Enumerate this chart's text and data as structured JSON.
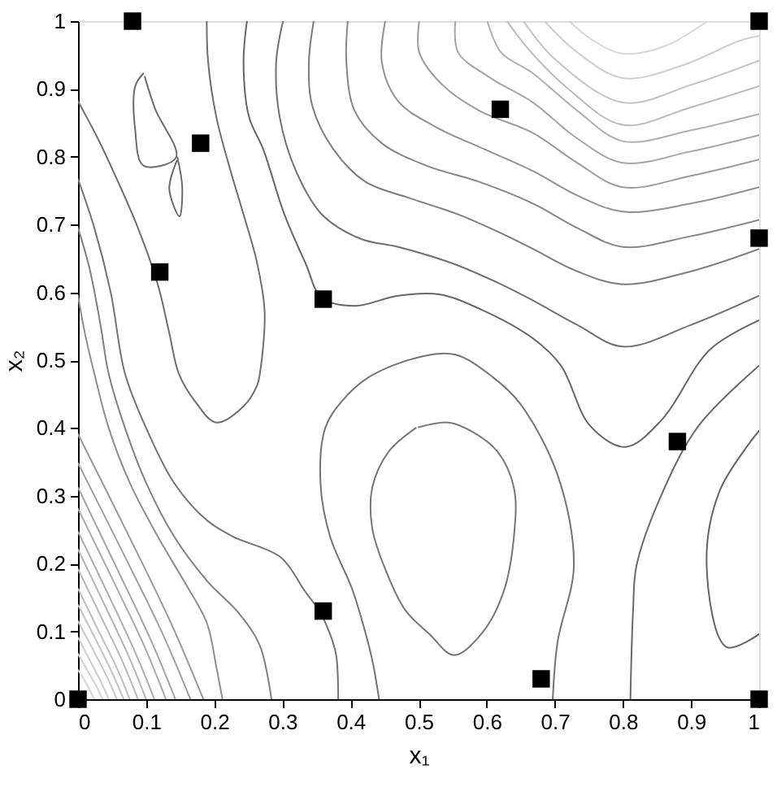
{
  "chart_data": {
    "type": "scatter",
    "xlabel": "x₁",
    "ylabel": "x₂",
    "xlim": [
      0,
      1
    ],
    "ylim": [
      0,
      1
    ],
    "xticks": [
      0,
      0.1,
      0.2,
      0.3,
      0.4,
      0.5,
      0.6,
      0.7,
      0.8,
      0.9,
      1
    ],
    "yticks": [
      0,
      0.1,
      0.2,
      0.3,
      0.4,
      0.5,
      0.6,
      0.7,
      0.8,
      0.9,
      1
    ],
    "grid": false,
    "series": [
      {
        "type": "line",
        "color": "#6e6e6e",
        "x": [
          0,
          0.029,
          0.057,
          0.088,
          0.117,
          0.134,
          0.148,
          0.172,
          0.203,
          0.243,
          0.263,
          0.267,
          0.274,
          0.263,
          0.243,
          0.224,
          0.203,
          0.191,
          0.189
        ],
        "values": [
          0.882,
          0.827,
          0.767,
          0.695,
          0.612,
          0.54,
          0.48,
          0.439,
          0.408,
          0.432,
          0.463,
          0.48,
          0.571,
          0.643,
          0.715,
          0.779,
          0.859,
          0.94,
          1.0
        ]
      },
      {
        "type": "line",
        "color": "#6c6c6c",
        "x": [
          0.096,
          0.084,
          0.084,
          0.096,
          0.144,
          0.113,
          0.098
        ],
        "values": [
          0.923,
          0.904,
          0.839,
          0.787,
          0.799,
          0.871,
          0.918
        ]
      },
      {
        "type": "line",
        "color": "#6a6a6a",
        "x": [
          0.146,
          0.153,
          0.149,
          0.134,
          0.145
        ],
        "values": [
          0.799,
          0.755,
          0.712,
          0.753,
          0.794
        ]
      },
      {
        "type": "line",
        "color": "#727272",
        "x": [
          0,
          0.024,
          0.048,
          0.069,
          0.1,
          0.141,
          0.189,
          0.227,
          0.298,
          0.332,
          0.356,
          0.37,
          0.379,
          0.382
        ],
        "values": [
          0.767,
          0.695,
          0.6,
          0.48,
          0.4,
          0.319,
          0.264,
          0.24,
          0.209,
          0.161,
          0.127,
          0.096,
          0.065,
          0
        ]
      },
      {
        "type": "line",
        "color": "#808080",
        "x": [
          0,
          0.017,
          0.033,
          0.045,
          0.069,
          0.1,
          0.141,
          0.189,
          0.236,
          0.267,
          0.284
        ],
        "values": [
          0.695,
          0.635,
          0.552,
          0.48,
          0.4,
          0.319,
          0.24,
          0.175,
          0.127,
          0.079,
          0
        ]
      },
      {
        "type": "line",
        "color": "#8e8e8e",
        "x": [
          0,
          0.01,
          0.024,
          0.045,
          0.076,
          0.117,
          0.155,
          0.189,
          0.203,
          0.212
        ],
        "values": [
          0.595,
          0.54,
          0.48,
          0.4,
          0.319,
          0.24,
          0.175,
          0.113,
          0.048,
          0
        ]
      },
      {
        "type": "line",
        "color": "#666666",
        "x": [
          0.248,
          0.243,
          0.251,
          0.272,
          0.303,
          0.334,
          0.358,
          0.406,
          0.47,
          0.53,
          0.589,
          0.668,
          0.709,
          0.752,
          0.804,
          0.857,
          0.928,
          1.0
        ],
        "values": [
          1.0,
          0.94,
          0.859,
          0.811,
          0.715,
          0.643,
          0.592,
          0.58,
          0.595,
          0.597,
          0.576,
          0.532,
          0.492,
          0.403,
          0.372,
          0.412,
          0.516,
          0.559
        ]
      },
      {
        "type": "line",
        "color": "#707070",
        "x": [
          0.301,
          0.291,
          0.296,
          0.32,
          0.358,
          0.415,
          0.47,
          0.549,
          0.621,
          0.668,
          0.733,
          0.8,
          0.9,
          1.0
        ],
        "values": [
          1.0,
          0.94,
          0.859,
          0.779,
          0.715,
          0.679,
          0.667,
          0.643,
          0.612,
          0.588,
          0.552,
          0.52,
          0.552,
          0.595
        ]
      },
      {
        "type": "line",
        "color": "#7c7c7c",
        "x": [
          0.346,
          0.339,
          0.344,
          0.375,
          0.422,
          0.487,
          0.558,
          0.63,
          0.668,
          0.733,
          0.8,
          0.9,
          1.0
        ],
        "values": [
          1.0,
          0.94,
          0.875,
          0.811,
          0.763,
          0.739,
          0.715,
          0.683,
          0.664,
          0.631,
          0.612,
          0.631,
          0.664
        ]
      },
      {
        "type": "line",
        "color": "#868686",
        "x": [
          0.396,
          0.394,
          0.406,
          0.446,
          0.511,
          0.589,
          0.668,
          0.733,
          0.8,
          0.9,
          1.0
        ],
        "values": [
          1.0,
          0.94,
          0.868,
          0.82,
          0.787,
          0.763,
          0.731,
          0.695,
          0.667,
          0.683,
          0.707
        ]
      },
      {
        "type": "line",
        "color": "#919191",
        "x": [
          0.451,
          0.446,
          0.47,
          0.525,
          0.597,
          0.668,
          0.733,
          0.8,
          0.9,
          1.0
        ],
        "values": [
          1.0,
          0.94,
          0.882,
          0.844,
          0.811,
          0.779,
          0.743,
          0.719,
          0.731,
          0.755
        ]
      },
      {
        "type": "line",
        "color": "#9b9b9b",
        "x": [
          0.501,
          0.501,
          0.535,
          0.589,
          0.668,
          0.733,
          0.8,
          0.9,
          1.0
        ],
        "values": [
          1.0,
          0.954,
          0.906,
          0.868,
          0.835,
          0.791,
          0.755,
          0.772,
          0.796
        ]
      },
      {
        "type": "line",
        "color": "#a5a5a5",
        "x": [
          0.554,
          0.558,
          0.606,
          0.668,
          0.733,
          0.8,
          0.9,
          1.0
        ],
        "values": [
          1.0,
          0.954,
          0.916,
          0.88,
          0.827,
          0.791,
          0.808,
          0.832
        ]
      },
      {
        "type": "line",
        "color": "#afafaf",
        "x": [
          0.601,
          0.621,
          0.668,
          0.733,
          0.8,
          0.9,
          1.0
        ],
        "values": [
          1.0,
          0.954,
          0.923,
          0.868,
          0.823,
          0.839,
          0.863
        ]
      },
      {
        "type": "line",
        "color": "#b9b9b9",
        "x": [
          0.63,
          0.661,
          0.721,
          0.8,
          0.9,
          1.0
        ],
        "values": [
          1.0,
          0.959,
          0.899,
          0.847,
          0.873,
          0.904
        ]
      },
      {
        "type": "line",
        "color": "#c3c3c3",
        "x": [
          0.654,
          0.697,
          0.8,
          0.9,
          1.0
        ],
        "values": [
          1.0,
          0.947,
          0.88,
          0.906,
          0.942
        ]
      },
      {
        "type": "line",
        "color": "#cdcdcd",
        "x": [
          0.685,
          0.733,
          0.8,
          0.888,
          0.971,
          1.0
        ],
        "values": [
          1.0,
          0.954,
          0.916,
          0.935,
          0.971,
          0.978
        ]
      },
      {
        "type": "line",
        "color": "#d7d7d7",
        "x": [
          0.721,
          0.757,
          0.8,
          0.864,
          0.924
        ],
        "values": [
          1.0,
          0.971,
          0.952,
          0.964,
          1.0
        ]
      },
      {
        "type": "line",
        "color": "#747474",
        "x": [
          0.442,
          0.434,
          0.427,
          0.403,
          0.37,
          0.356,
          0.363,
          0.387,
          0.427,
          0.499,
          0.554,
          0.609,
          0.649,
          0.704,
          0.728,
          0.704,
          0.697
        ],
        "values": [
          0,
          0.048,
          0.079,
          0.161,
          0.24,
          0.319,
          0.4,
          0.439,
          0.475,
          0.504,
          0.508,
          0.475,
          0.436,
          0.331,
          0.197,
          0.084,
          0
        ]
      },
      {
        "type": "line",
        "color": "#767676",
        "x": [
          0.496,
          0.456,
          0.432,
          0.432,
          0.451,
          0.48,
          0.516,
          0.552,
          0.592,
          0.624,
          0.64,
          0.64,
          0.616,
          0.576,
          0.544,
          0.5
        ],
        "values": [
          0.4,
          0.365,
          0.312,
          0.252,
          0.192,
          0.132,
          0.096,
          0.065,
          0.096,
          0.156,
          0.24,
          0.312,
          0.365,
          0.396,
          0.408,
          0.401
        ]
      },
      {
        "type": "line",
        "color": "#686868",
        "x": [
          0.811,
          0.815,
          0.82,
          0.856,
          0.911,
          1.0
        ],
        "values": [
          0,
          0.132,
          0.197,
          0.3,
          0.403,
          0.492
        ]
      },
      {
        "type": "line",
        "color": "#646464",
        "x": [
          1.0,
          0.942,
          0.923,
          0.952,
          1.0
        ],
        "values": [
          0.396,
          0.307,
          0.197,
          0.077,
          0.096
        ]
      },
      {
        "type": "line",
        "color": "#989898",
        "x": [
          0,
          0.074,
          0.138,
          0.184
        ],
        "values": [
          0.391,
          0.242,
          0.109,
          0
        ]
      },
      {
        "type": "line",
        "color": "#9f9f9f",
        "x": [
          0,
          0.066,
          0.124,
          0.165
        ],
        "values": [
          0.348,
          0.216,
          0.097,
          0
        ]
      },
      {
        "type": "line",
        "color": "#a3a3a3",
        "x": [
          0,
          0.057,
          0.107,
          0.143
        ],
        "values": [
          0.312,
          0.193,
          0.087,
          0
        ]
      },
      {
        "type": "line",
        "color": "#a9a9a9",
        "x": [
          0,
          0.052,
          0.097,
          0.129
        ],
        "values": [
          0.281,
          0.174,
          0.079,
          0
        ]
      },
      {
        "type": "line",
        "color": "#adadad",
        "x": [
          0,
          0.045,
          0.084,
          0.112
        ],
        "values": [
          0.247,
          0.153,
          0.069,
          0
        ]
      },
      {
        "type": "line",
        "color": "#b3b3b3",
        "x": [
          0,
          0.04,
          0.075,
          0.1
        ],
        "values": [
          0.221,
          0.137,
          0.062,
          0
        ]
      },
      {
        "type": "line",
        "color": "#b7b7b7",
        "x": [
          0,
          0.035,
          0.066,
          0.088
        ],
        "values": [
          0.192,
          0.119,
          0.054,
          0
        ]
      },
      {
        "type": "line",
        "color": "#bdbdbd",
        "x": [
          0,
          0.03,
          0.057,
          0.076
        ],
        "values": [
          0.163,
          0.101,
          0.046,
          0
        ]
      },
      {
        "type": "line",
        "color": "#c1c1c1",
        "x": [
          0,
          0.027,
          0.05,
          0.067
        ],
        "values": [
          0.139,
          0.086,
          0.039,
          0
        ]
      },
      {
        "type": "line",
        "color": "#c7c7c7",
        "x": [
          0,
          0.023,
          0.043,
          0.057
        ],
        "values": [
          0.115,
          0.071,
          0.032,
          0
        ]
      },
      {
        "type": "line",
        "color": "#cbcbcb",
        "x": [
          0,
          0.018,
          0.034,
          0.045
        ],
        "values": [
          0.091,
          0.056,
          0.025,
          0
        ]
      },
      {
        "type": "line",
        "color": "#d1d1d1",
        "x": [
          0,
          0.014,
          0.027,
          0.036
        ],
        "values": [
          0.067,
          0.042,
          0.019,
          0
        ]
      },
      {
        "type": "line",
        "color": "#d5d5d5",
        "x": [
          0,
          0.01,
          0.018,
          0.024
        ],
        "values": [
          0.043,
          0.027,
          0.012,
          0
        ]
      },
      {
        "color": "#000000",
        "marker": "square",
        "x": [
          0,
          0.08,
          0.18,
          0.12,
          0.36,
          0.62,
          1,
          1,
          0.88,
          0.36,
          0.68,
          1
        ],
        "values": [
          0,
          1,
          0.82,
          0.63,
          0.59,
          0.87,
          1,
          0.68,
          0.38,
          0.13,
          0.03,
          0
        ]
      }
    ]
  }
}
